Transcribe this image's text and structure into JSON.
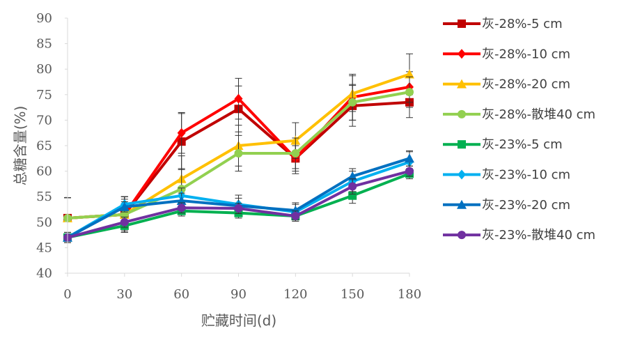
{
  "chart_data": {
    "type": "line",
    "xlabel": "贮藏时间(d)",
    "ylabel": "总糖含量(%)",
    "x": [
      0,
      30,
      60,
      90,
      120,
      150,
      180
    ],
    "xticks": [
      "0",
      "30",
      "60",
      "90",
      "120",
      "150",
      "180"
    ],
    "ylim": [
      40,
      90
    ],
    "yticks": [
      "40",
      "45",
      "50",
      "55",
      "60",
      "65",
      "70",
      "75",
      "80",
      "85",
      "90"
    ],
    "grid": false,
    "legend_position": "right",
    "series": [
      {
        "name": "灰-28%-5 cm",
        "color": "#c00000",
        "marker": "square",
        "values": [
          50.8,
          51.5,
          65.8,
          72.2,
          62.5,
          72.8,
          73.5
        ],
        "errors": [
          4.0,
          3.5,
          5.5,
          4.5,
          3.0,
          4.0,
          3.0
        ]
      },
      {
        "name": "灰-28%-10 cm",
        "color": "#ff0000",
        "marker": "diamond",
        "values": [
          50.8,
          51.5,
          67.5,
          74.2,
          62.5,
          74.5,
          76.5
        ],
        "errors": [
          4.0,
          3.5,
          4.0,
          4.0,
          2.5,
          4.5,
          3.0
        ]
      },
      {
        "name": "灰-28%-20 cm",
        "color": "#ffc000",
        "marker": "triangle",
        "values": [
          50.8,
          51.5,
          58.5,
          65.0,
          66.0,
          75.2,
          79.0
        ],
        "errors": [
          4.0,
          3.5,
          4.5,
          4.0,
          3.5,
          3.5,
          4.0
        ]
      },
      {
        "name": "灰-28%-散堆40 cm",
        "color": "#92d050",
        "marker": "circle",
        "values": [
          50.8,
          51.5,
          56.5,
          63.5,
          63.5,
          73.5,
          75.5
        ],
        "errors": [
          4.0,
          3.5,
          4.0,
          3.5,
          3.0,
          3.5,
          3.0
        ]
      },
      {
        "name": "灰-23%-5 cm",
        "color": "#00b050",
        "marker": "square",
        "values": [
          47.0,
          49.3,
          52.2,
          51.8,
          51.2,
          55.2,
          59.5
        ],
        "errors": [
          1.0,
          1.0,
          1.0,
          1.0,
          1.0,
          1.5,
          1.0
        ]
      },
      {
        "name": "灰-23%-10 cm",
        "color": "#00b0f0",
        "marker": "diamond",
        "values": [
          47.0,
          53.5,
          55.2,
          53.5,
          52.0,
          58.0,
          61.8
        ],
        "errors": [
          1.0,
          1.0,
          1.5,
          1.8,
          1.5,
          2.0,
          2.0
        ]
      },
      {
        "name": "灰-23%-20 cm",
        "color": "#0070c0",
        "marker": "triangle",
        "values": [
          47.0,
          53.0,
          54.2,
          53.2,
          52.3,
          59.0,
          62.5
        ],
        "errors": [
          1.0,
          1.0,
          1.5,
          1.5,
          1.5,
          1.5,
          1.5
        ]
      },
      {
        "name": "灰-23%-散堆40 cm",
        "color": "#7030a0",
        "marker": "circle",
        "values": [
          47.0,
          50.0,
          52.8,
          52.7,
          51.2,
          57.0,
          60.0
        ],
        "errors": [
          1.0,
          1.0,
          1.0,
          1.0,
          1.0,
          1.5,
          1.0
        ]
      }
    ]
  }
}
